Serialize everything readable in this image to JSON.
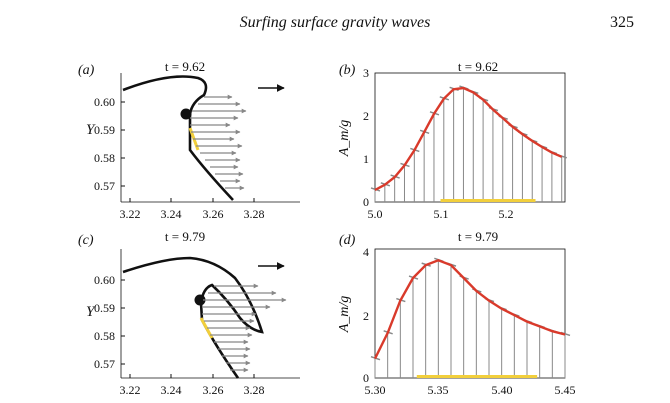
{
  "header": {
    "title": "Surfing surface gravity waves",
    "page_number": "325"
  },
  "panels": [
    {
      "id": "a",
      "label": "(a)",
      "time": "t = 9.62",
      "x_ticks": [
        "3.22",
        "3.24",
        "3.26",
        "3.28"
      ],
      "y_ticks": [
        "0.57",
        "0.58",
        "0.59",
        "0.60"
      ],
      "ylabel": "Y"
    },
    {
      "id": "b",
      "label": "(b)",
      "time": "t = 9.62",
      "x_ticks": [
        "5.0",
        "5.1",
        "5.2"
      ],
      "y_ticks": [
        "0",
        "1",
        "2",
        "3"
      ],
      "ylabel": "A_m/g"
    },
    {
      "id": "c",
      "label": "(c)",
      "time": "t = 9.79",
      "x_ticks": [
        "3.22",
        "3.24",
        "3.26",
        "3.28"
      ],
      "y_ticks": [
        "0.57",
        "0.58",
        "0.59",
        "0.60"
      ],
      "ylabel": "Y"
    },
    {
      "id": "d",
      "label": "(d)",
      "time": "t = 9.79",
      "x_ticks": [
        "5.30",
        "5.35",
        "5.40",
        "5.45"
      ],
      "y_ticks": [
        "0",
        "2",
        "4"
      ],
      "ylabel": "A_m/g"
    }
  ],
  "chart_data": [
    {
      "panel": "b",
      "type": "bar",
      "xlim": [
        5.0,
        5.29
      ],
      "ylim": [
        0,
        3
      ],
      "x": [
        5.0,
        5.015,
        5.03,
        5.045,
        5.06,
        5.075,
        5.09,
        5.105,
        5.12,
        5.135,
        5.15,
        5.165,
        5.18,
        5.195,
        5.21,
        5.225,
        5.24,
        5.255,
        5.27,
        5.285
      ],
      "values": [
        0.28,
        0.4,
        0.58,
        0.85,
        1.2,
        1.62,
        2.05,
        2.4,
        2.62,
        2.65,
        2.55,
        2.38,
        2.15,
        1.95,
        1.75,
        1.58,
        1.42,
        1.28,
        1.15,
        1.05
      ],
      "highlight": [
        5.1,
        5.245
      ],
      "line_color": "#d93a2b",
      "highlight_color": "#f2cf3b"
    },
    {
      "panel": "d",
      "type": "bar",
      "xlim": [
        5.3,
        5.45
      ],
      "ylim": [
        0,
        4
      ],
      "x": [
        5.3,
        5.31,
        5.32,
        5.33,
        5.34,
        5.35,
        5.36,
        5.37,
        5.38,
        5.39,
        5.4,
        5.41,
        5.42,
        5.43,
        5.44,
        5.45
      ],
      "values": [
        0.6,
        1.4,
        2.4,
        3.1,
        3.5,
        3.65,
        3.5,
        3.1,
        2.7,
        2.4,
        2.15,
        1.95,
        1.75,
        1.6,
        1.45,
        1.35
      ],
      "highlight": [
        5.333,
        5.428
      ],
      "line_color": "#d93a2b",
      "highlight_color": "#f2cf3b"
    }
  ]
}
